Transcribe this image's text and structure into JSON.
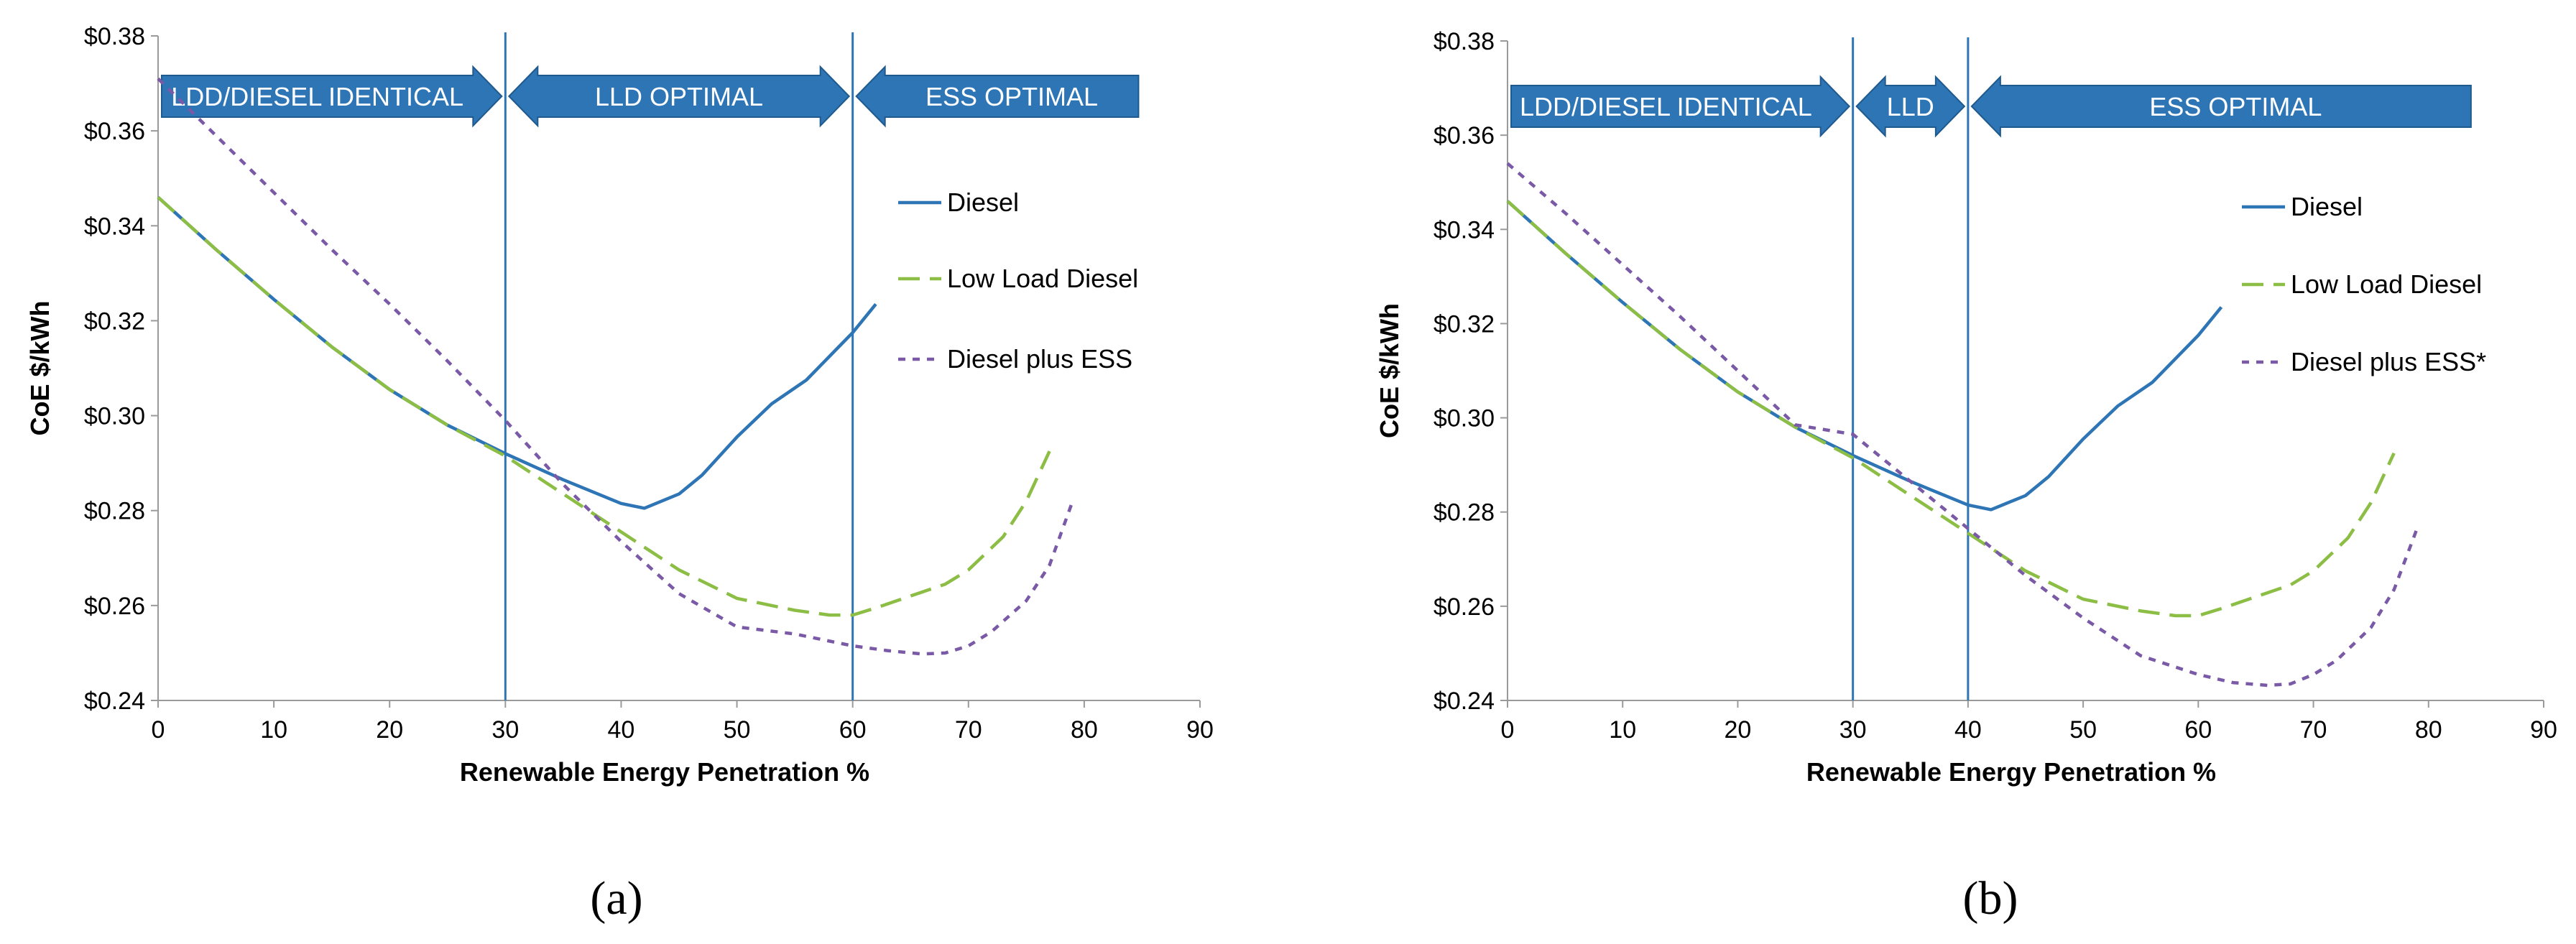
{
  "chart_data": [
    {
      "type": "line",
      "panel_label": "(a)",
      "panel_label_letter": "a",
      "xlabel": "Renewable Energy Penetration %",
      "ylabel": "CoE $/kWh",
      "xlim": [
        0,
        90
      ],
      "ylim": [
        0.24,
        0.38
      ],
      "x_ticks": [
        0,
        10,
        20,
        30,
        40,
        50,
        60,
        70,
        80,
        90
      ],
      "x_tick_labels": [
        "0",
        "10",
        "20",
        "30",
        "40",
        "50",
        "60",
        "70",
        "80",
        "90"
      ],
      "y_ticks": [
        0.24,
        0.26,
        0.28,
        0.3,
        0.32,
        0.34,
        0.36,
        0.38
      ],
      "y_tick_labels": [
        "$0.24",
        "$0.26",
        "$0.28",
        "$0.30",
        "$0.32",
        "$0.34",
        "$0.36",
        "$0.38"
      ],
      "vlines": [
        30,
        60
      ],
      "bands": [
        {
          "label": "LDD/DIESEL IDENTICAL",
          "x_start": 0,
          "x_end": 30,
          "arrow": "right"
        },
        {
          "label": "LLD OPTIMAL",
          "x_start": 30,
          "x_end": 60,
          "arrow": "both"
        },
        {
          "label": "ESS OPTIMAL",
          "x_start": 60,
          "x_end": 85,
          "arrow": "left"
        }
      ],
      "series": [
        {
          "name": "Diesel",
          "color": "#2e75b6",
          "dash": "solid",
          "x": [
            0,
            5,
            10,
            15,
            20,
            25,
            30,
            35,
            40,
            42,
            45,
            47,
            50,
            53,
            56,
            58,
            60,
            62
          ],
          "y": [
            0.346,
            0.335,
            0.3245,
            0.3145,
            0.3055,
            0.298,
            0.292,
            0.2865,
            0.2815,
            0.2805,
            0.2835,
            0.2875,
            0.2955,
            0.3025,
            0.3075,
            0.3125,
            0.3175,
            0.3235
          ]
        },
        {
          "name": "Low Load Diesel",
          "color": "#8cbd45",
          "dash": "dashed",
          "x": [
            0,
            5,
            10,
            15,
            20,
            25,
            30,
            35,
            40,
            45,
            50,
            55,
            58,
            60,
            62,
            65,
            68,
            70,
            73,
            75,
            77
          ],
          "y": [
            0.346,
            0.335,
            0.3245,
            0.3145,
            0.3055,
            0.298,
            0.2915,
            0.2835,
            0.2755,
            0.2675,
            0.2615,
            0.259,
            0.258,
            0.258,
            0.2595,
            0.262,
            0.2645,
            0.2675,
            0.2745,
            0.282,
            0.2925
          ]
        },
        {
          "name": "Diesel plus ESS",
          "color": "#7a5aa6",
          "dash": "dotted",
          "x": [
            0,
            5,
            10,
            15,
            20,
            25,
            30,
            35,
            40,
            45,
            50,
            55,
            60,
            63,
            66,
            68,
            70,
            72,
            75,
            77,
            79
          ],
          "y": [
            0.371,
            0.359,
            0.347,
            0.335,
            0.3235,
            0.3115,
            0.299,
            0.2855,
            0.2735,
            0.2625,
            0.2555,
            0.254,
            0.2515,
            0.2505,
            0.2498,
            0.25,
            0.2515,
            0.2545,
            0.261,
            0.2685,
            0.282
          ]
        }
      ]
    },
    {
      "type": "line",
      "panel_label": "(b)",
      "panel_label_letter": "b",
      "xlabel": "Renewable Energy Penetration %",
      "ylabel": "CoE $/kWh",
      "xlim": [
        0,
        90
      ],
      "ylim": [
        0.24,
        0.38
      ],
      "x_ticks": [
        0,
        10,
        20,
        30,
        40,
        50,
        60,
        70,
        80,
        90
      ],
      "x_tick_labels": [
        "0",
        "10",
        "20",
        "30",
        "40",
        "50",
        "60",
        "70",
        "80",
        "90"
      ],
      "y_ticks": [
        0.24,
        0.26,
        0.28,
        0.3,
        0.32,
        0.34,
        0.36,
        0.38
      ],
      "y_tick_labels": [
        "$0.24",
        "$0.26",
        "$0.28",
        "$0.30",
        "$0.32",
        "$0.34",
        "$0.36",
        "$0.38"
      ],
      "vlines": [
        30,
        40
      ],
      "bands": [
        {
          "label": "LDD/DIESEL IDENTICAL",
          "x_start": 0,
          "x_end": 30,
          "arrow": "right"
        },
        {
          "label": "LLD",
          "x_start": 30,
          "x_end": 40,
          "arrow": "both"
        },
        {
          "label": "ESS OPTIMAL",
          "x_start": 40,
          "x_end": 84,
          "arrow": "left"
        }
      ],
      "series": [
        {
          "name": "Diesel",
          "color": "#2e75b6",
          "dash": "solid",
          "x": [
            0,
            5,
            10,
            15,
            20,
            25,
            30,
            35,
            40,
            42,
            45,
            47,
            50,
            53,
            56,
            58,
            60,
            62
          ],
          "y": [
            0.346,
            0.335,
            0.3245,
            0.3145,
            0.3055,
            0.298,
            0.292,
            0.2865,
            0.2815,
            0.2805,
            0.2835,
            0.2875,
            0.2955,
            0.3025,
            0.3075,
            0.3125,
            0.3175,
            0.3235
          ]
        },
        {
          "name": "Low Load Diesel",
          "color": "#8cbd45",
          "dash": "dashed",
          "x": [
            0,
            5,
            10,
            15,
            20,
            25,
            30,
            35,
            40,
            45,
            50,
            55,
            58,
            60,
            62,
            65,
            68,
            70,
            73,
            75,
            77
          ],
          "y": [
            0.346,
            0.335,
            0.3245,
            0.3145,
            0.3055,
            0.298,
            0.2915,
            0.2835,
            0.2755,
            0.2675,
            0.2615,
            0.259,
            0.258,
            0.258,
            0.2595,
            0.262,
            0.2645,
            0.2675,
            0.2745,
            0.282,
            0.2925
          ]
        },
        {
          "name": "Diesel plus ESS*",
          "color": "#7a5aa6",
          "dash": "dotted",
          "x": [
            0,
            5,
            10,
            15,
            20,
            25,
            30,
            35,
            40,
            45,
            50,
            55,
            60,
            63,
            66,
            68,
            70,
            72,
            75,
            77,
            79
          ],
          "y": [
            0.354,
            0.3435,
            0.3325,
            0.3215,
            0.31,
            0.2985,
            0.2965,
            0.2865,
            0.2765,
            0.2665,
            0.2575,
            0.2495,
            0.2455,
            0.2438,
            0.2432,
            0.2435,
            0.2455,
            0.2485,
            0.2555,
            0.2635,
            0.2765
          ]
        }
      ]
    }
  ]
}
